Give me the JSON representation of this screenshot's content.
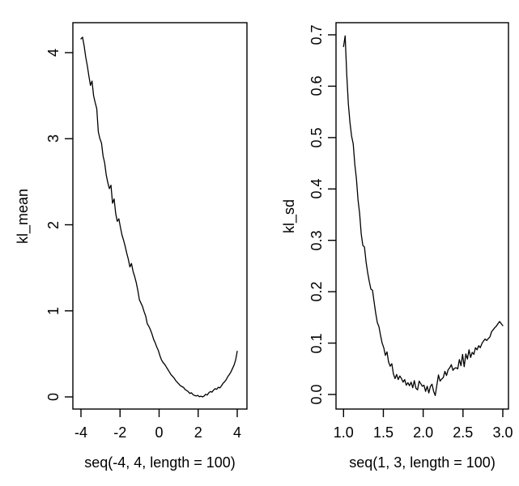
{
  "figure": {
    "background": "#ffffff",
    "foreground": "#000000"
  },
  "chart_data": [
    {
      "type": "line",
      "panel": "left",
      "title": "",
      "xlabel": "seq(-4, 4, length = 100)",
      "ylabel": "kl_mean",
      "line_color": "#000000",
      "grid": false,
      "legend": null,
      "x": {
        "from": -4,
        "to": 4,
        "length": 100
      },
      "xlim": [
        -4.32,
        4.32
      ],
      "ylim": [
        -0.14,
        4.35
      ],
      "xticks": {
        "values": [
          -4,
          -2,
          0,
          2,
          4
        ],
        "labels": [
          "-4",
          "-2",
          "0",
          "2",
          "4"
        ]
      },
      "yticks": {
        "values": [
          0,
          1,
          2,
          3,
          4
        ],
        "labels": [
          "0",
          "1",
          "2",
          "3",
          "4"
        ]
      },
      "y": [
        4.16,
        4.18,
        4.08,
        3.95,
        3.85,
        3.73,
        3.62,
        3.67,
        3.5,
        3.42,
        3.35,
        3.08,
        3.0,
        2.95,
        2.8,
        2.72,
        2.58,
        2.49,
        2.42,
        2.46,
        2.25,
        2.3,
        2.13,
        2.04,
        2.07,
        1.97,
        1.88,
        1.82,
        1.75,
        1.67,
        1.6,
        1.51,
        1.55,
        1.46,
        1.4,
        1.33,
        1.24,
        1.13,
        1.09,
        1.05,
        0.99,
        0.94,
        0.85,
        0.82,
        0.78,
        0.73,
        0.67,
        0.63,
        0.58,
        0.54,
        0.48,
        0.43,
        0.4,
        0.38,
        0.35,
        0.32,
        0.29,
        0.26,
        0.24,
        0.22,
        0.19,
        0.17,
        0.15,
        0.13,
        0.12,
        0.11,
        0.085,
        0.075,
        0.06,
        0.04,
        0.048,
        0.026,
        0.016,
        0.01,
        0.018,
        0.002,
        0.008,
        0.0,
        0.01,
        0.03,
        0.022,
        0.048,
        0.062,
        0.055,
        0.08,
        0.095,
        0.088,
        0.112,
        0.105,
        0.128,
        0.158,
        0.175,
        0.2,
        0.235,
        0.26,
        0.29,
        0.33,
        0.37,
        0.43,
        0.53
      ]
    },
    {
      "type": "line",
      "panel": "right",
      "title": "",
      "xlabel": "seq(1, 3, length = 100)",
      "ylabel": "kl_sd",
      "line_color": "#000000",
      "grid": false,
      "legend": null,
      "x": {
        "from": 1,
        "to": 3,
        "length": 100
      },
      "xlim": [
        0.92,
        3.08
      ],
      "ylim": [
        -0.028,
        0.723
      ],
      "xticks": {
        "values": [
          1.0,
          1.5,
          2.0,
          2.5,
          3.0
        ],
        "labels": [
          "1.0",
          "1.5",
          "2.0",
          "2.5",
          "3.0"
        ]
      },
      "yticks": {
        "values": [
          0.0,
          0.1,
          0.2,
          0.3,
          0.4,
          0.5,
          0.6,
          0.7
        ],
        "labels": [
          "0.0",
          "0.1",
          "0.2",
          "0.3",
          "0.4",
          "0.5",
          "0.6",
          "0.7"
        ]
      },
      "y": [
        0.677,
        0.698,
        0.622,
        0.565,
        0.529,
        0.503,
        0.488,
        0.448,
        0.42,
        0.379,
        0.352,
        0.312,
        0.29,
        0.287,
        0.258,
        0.237,
        0.22,
        0.205,
        0.203,
        0.18,
        0.158,
        0.14,
        0.132,
        0.115,
        0.1,
        0.091,
        0.076,
        0.083,
        0.063,
        0.055,
        0.06,
        0.04,
        0.031,
        0.039,
        0.029,
        0.036,
        0.031,
        0.024,
        0.029,
        0.018,
        0.023,
        0.017,
        0.024,
        0.013,
        0.027,
        0.012,
        0.009,
        0.026,
        0.021,
        0.016,
        0.018,
        0.006,
        0.016,
        0.003,
        0.016,
        0.02,
        0.006,
        -0.002,
        0.018,
        0.038,
        0.026,
        0.03,
        0.033,
        0.045,
        0.037,
        0.048,
        0.052,
        0.058,
        0.047,
        0.051,
        0.052,
        0.05,
        0.068,
        0.056,
        0.078,
        0.054,
        0.079,
        0.069,
        0.087,
        0.072,
        0.082,
        0.078,
        0.091,
        0.087,
        0.095,
        0.091,
        0.099,
        0.104,
        0.108,
        0.105,
        0.109,
        0.112,
        0.122,
        0.126,
        0.13,
        0.133,
        0.138,
        0.142,
        0.138,
        0.134
      ]
    }
  ]
}
